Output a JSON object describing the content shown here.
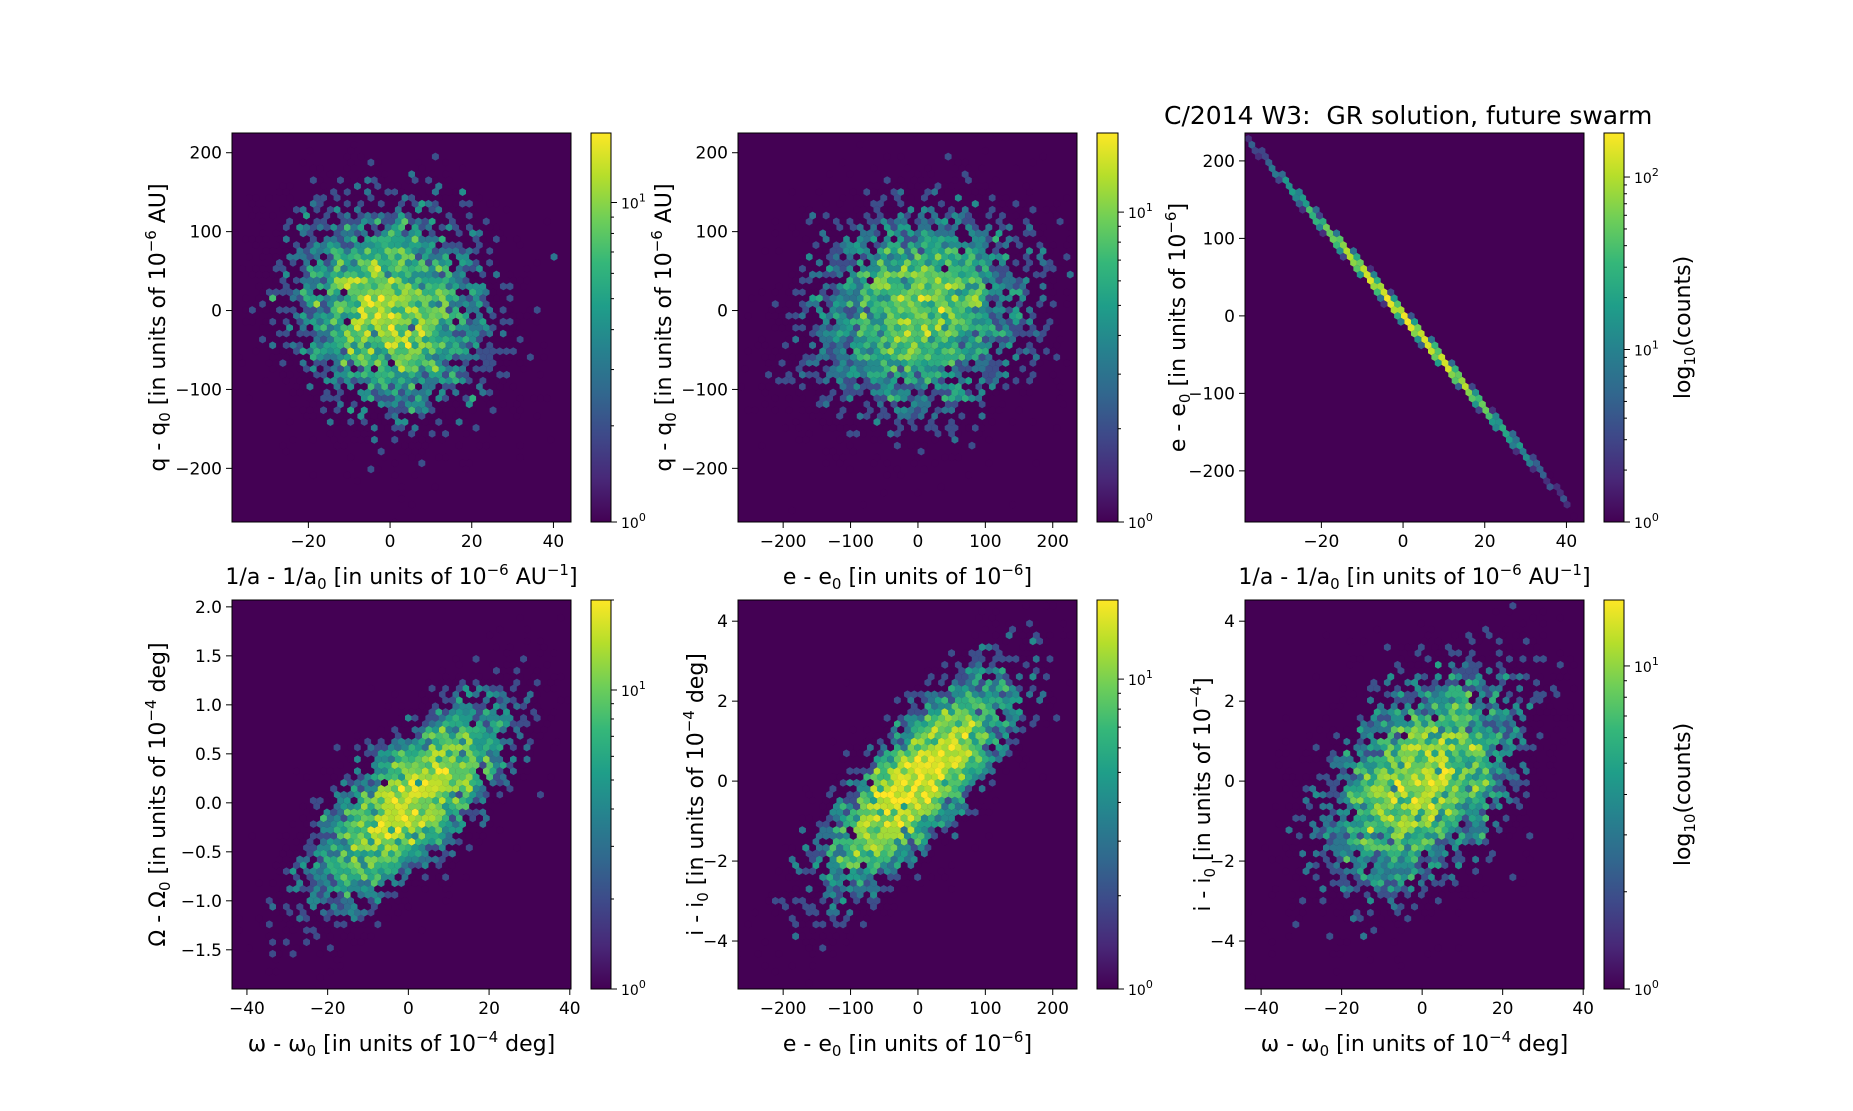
{
  "figure_title": "C/2014 W3:  GR solution, future swarm",
  "chart_data": [
    {
      "type": "hexbin",
      "panel": "top-left",
      "xlabel": "1/a - 1/a0 [in units of 10^-6 AU^-1]",
      "xlabel_parts": {
        "main": "1/a - 1/a",
        "sub": "0",
        "mid": " [in units of 10",
        "sup": "−6",
        "mid2": " AU",
        "sup2": "−1",
        "end": "]"
      },
      "ylabel_parts": {
        "main": "q - q",
        "sub": "0",
        "mid": " [in units of 10",
        "sup": "−6",
        "mid2": " AU]",
        "sup2": "",
        "end": ""
      },
      "xlim": [
        -38.7,
        44.3
      ],
      "ylim": [
        -268,
        225
      ],
      "xticks": [
        -20,
        0,
        20,
        40
      ],
      "xtick_labels": [
        "−20",
        "0",
        "20",
        "40"
      ],
      "yticks": [
        -200,
        -100,
        0,
        100,
        200
      ],
      "ytick_labels": [
        "−200",
        "−100",
        "0",
        "100",
        "200"
      ],
      "distribution": {
        "mean_x": 0,
        "mean_y": 0,
        "sigma_x": 13,
        "sigma_y": 70,
        "correlation": -0.15,
        "n_points": 5000
      },
      "colorbar": {
        "scale": "log",
        "range": [
          1,
          16.5
        ],
        "major_ticks": [
          1,
          10
        ],
        "major_labels": [
          "10",
          "10"
        ],
        "major_exps": [
          "0",
          "1"
        ],
        "label": ""
      }
    },
    {
      "type": "hexbin",
      "panel": "top-middle",
      "xlabel_parts": {
        "main": "e - e",
        "sub": "0",
        "mid": " [in units of 10",
        "sup": "−6",
        "mid2": "]",
        "sup2": "",
        "end": ""
      },
      "ylabel_parts": {
        "main": "q - q",
        "sub": "0",
        "mid": " [in units of 10",
        "sup": "−6",
        "mid2": " AU]",
        "sup2": "",
        "end": ""
      },
      "xlim": [
        -267,
        236
      ],
      "ylim": [
        -268,
        225
      ],
      "xticks": [
        -200,
        -100,
        0,
        100,
        200
      ],
      "xtick_labels": [
        "−200",
        "−100",
        "0",
        "100",
        "200"
      ],
      "yticks": [
        -200,
        -100,
        0,
        100,
        200
      ],
      "ytick_labels": [
        "−200",
        "−100",
        "0",
        "100",
        "200"
      ],
      "distribution": {
        "mean_x": 0,
        "mean_y": 0,
        "sigma_x": 85,
        "sigma_y": 70,
        "correlation": 0.1,
        "n_points": 5000
      },
      "colorbar": {
        "scale": "log",
        "range": [
          1,
          18
        ],
        "major_ticks": [
          1,
          10
        ],
        "major_labels": [
          "10",
          "10"
        ],
        "major_exps": [
          "0",
          "1"
        ],
        "label": ""
      }
    },
    {
      "type": "hexbin",
      "panel": "top-right",
      "xlabel_parts": {
        "main": "1/a - 1/a",
        "sub": "0",
        "mid": " [in units of 10",
        "sup": "−6",
        "mid2": " AU",
        "sup2": "−1",
        "end": "]"
      },
      "ylabel_parts": {
        "main": "e - e",
        "sub": "0",
        "mid": " [in units of 10",
        "sup": "−6",
        "mid2": "]",
        "sup2": "",
        "end": ""
      },
      "xlim": [
        -38.7,
        44.3
      ],
      "ylim": [
        -266,
        236
      ],
      "xticks": [
        -20,
        0,
        20,
        40
      ],
      "xtick_labels": [
        "−20",
        "0",
        "20",
        "40"
      ],
      "yticks": [
        -200,
        -100,
        0,
        100,
        200
      ],
      "ytick_labels": [
        "−200",
        "−100",
        "0",
        "100",
        "200"
      ],
      "distribution": {
        "mean_x": 0,
        "mean_y": 0,
        "sigma_x": 13,
        "sigma_y": 78,
        "correlation": -0.9995,
        "n_points": 5000
      },
      "colorbar": {
        "scale": "log",
        "range": [
          1,
          180
        ],
        "major_ticks": [
          1,
          10,
          100
        ],
        "major_labels": [
          "10",
          "10",
          "10"
        ],
        "major_exps": [
          "0",
          "1",
          "2"
        ],
        "label": "log10(counts)",
        "label_parts": {
          "main": "log",
          "sub": "10",
          "end": "(counts)"
        }
      }
    },
    {
      "type": "hexbin",
      "panel": "bottom-left",
      "xlabel_parts": {
        "main": "ω - ω",
        "sub": "0",
        "mid": " [in units of 10",
        "sup": "−4",
        "mid2": " deg]",
        "sup2": "",
        "end": ""
      },
      "ylabel_parts": {
        "main": "Ω - Ω",
        "sub": "0",
        "mid": " [in units of 10",
        "sup": "−4",
        "mid2": " deg]",
        "sup2": "",
        "end": ""
      },
      "xlim": [
        -43.7,
        40.3
      ],
      "ylim": [
        -1.9,
        2.07
      ],
      "xticks": [
        -40,
        -20,
        0,
        20,
        40
      ],
      "xtick_labels": [
        "−40",
        "−20",
        "0",
        "20",
        "40"
      ],
      "yticks": [
        -1.5,
        -1.0,
        -0.5,
        0.0,
        0.5,
        1.0,
        1.5,
        2.0
      ],
      "ytick_labels": [
        "−1.5",
        "−1.0",
        "−0.5",
        "0.0",
        "0.5",
        "1.0",
        "1.5",
        "2.0"
      ],
      "distribution": {
        "mean_x": 0,
        "mean_y": 0,
        "sigma_x": 13,
        "sigma_y": 0.55,
        "correlation": 0.72,
        "n_points": 5000
      },
      "colorbar": {
        "scale": "log",
        "range": [
          1,
          20
        ],
        "major_ticks": [
          1,
          10
        ],
        "major_labels": [
          "10",
          "10"
        ],
        "major_exps": [
          "0",
          "1"
        ],
        "label": ""
      }
    },
    {
      "type": "hexbin",
      "panel": "bottom-middle",
      "xlabel_parts": {
        "main": "e - e",
        "sub": "0",
        "mid": " [in units of 10",
        "sup": "−6",
        "mid2": "]",
        "sup2": "",
        "end": ""
      },
      "ylabel_parts": {
        "main": "i - i",
        "sub": "0",
        "mid": " [in units of 10",
        "sup": "−4",
        "mid2": " deg]",
        "sup2": "",
        "end": ""
      },
      "xlim": [
        -267,
        236
      ],
      "ylim": [
        -5.2,
        4.53
      ],
      "xticks": [
        -200,
        -100,
        0,
        100,
        200
      ],
      "xtick_labels": [
        "−200",
        "−100",
        "0",
        "100",
        "200"
      ],
      "yticks": [
        -4,
        -2,
        0,
        2,
        4
      ],
      "ytick_labels": [
        "−4",
        "−2",
        "0",
        "2",
        "4"
      ],
      "distribution": {
        "mean_x": 0,
        "mean_y": 0,
        "sigma_x": 75,
        "sigma_y": 1.45,
        "correlation": 0.78,
        "n_points": 5000
      },
      "colorbar": {
        "scale": "log",
        "range": [
          1,
          18
        ],
        "major_ticks": [
          1,
          10
        ],
        "major_labels": [
          "10",
          "10"
        ],
        "major_exps": [
          "0",
          "1"
        ],
        "label": ""
      }
    },
    {
      "type": "hexbin",
      "panel": "bottom-right",
      "xlabel_parts": {
        "main": "ω - ω",
        "sub": "0",
        "mid": " [in units of 10",
        "sup": "−4",
        "mid2": " deg]",
        "sup2": "",
        "end": ""
      },
      "ylabel_parts": {
        "main": "i - i",
        "sub": "0",
        "mid": " [in units of 10",
        "sup": "−4",
        "mid2": "]",
        "sup2": "",
        "end": ""
      },
      "xlim": [
        -44,
        40.2
      ],
      "ylim": [
        -5.2,
        4.53
      ],
      "xticks": [
        -40,
        -20,
        0,
        20,
        40
      ],
      "xtick_labels": [
        "−40",
        "−20",
        "0",
        "20",
        "40"
      ],
      "yticks": [
        -4,
        -2,
        0,
        2,
        4
      ],
      "ytick_labels": [
        "−4",
        "−2",
        "0",
        "2",
        "4"
      ],
      "distribution": {
        "mean_x": 0,
        "mean_y": 0,
        "sigma_x": 13,
        "sigma_y": 1.45,
        "correlation": 0.45,
        "n_points": 5000
      },
      "colorbar": {
        "scale": "log",
        "range": [
          1,
          16
        ],
        "major_ticks": [
          1,
          10
        ],
        "major_labels": [
          "10",
          "10"
        ],
        "major_exps": [
          "0",
          "1"
        ],
        "label": "log10(counts)",
        "label_parts": {
          "main": "log",
          "sub": "10",
          "end": "(counts)"
        }
      }
    }
  ],
  "colormap": [
    "#440154",
    "#482878",
    "#3e4989",
    "#31688e",
    "#26828e",
    "#1f9e89",
    "#35b779",
    "#6ece58",
    "#b5de2b",
    "#fde725"
  ],
  "background_color": "#440154"
}
